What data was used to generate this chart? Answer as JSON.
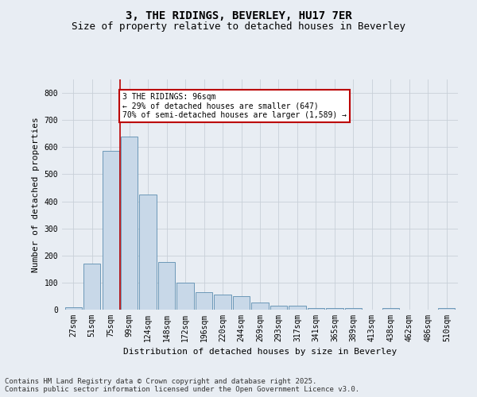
{
  "title": "3, THE RIDINGS, BEVERLEY, HU17 7ER",
  "subtitle": "Size of property relative to detached houses in Beverley",
  "xlabel": "Distribution of detached houses by size in Beverley",
  "ylabel": "Number of detached properties",
  "categories": [
    "27sqm",
    "51sqm",
    "75sqm",
    "99sqm",
    "124sqm",
    "148sqm",
    "172sqm",
    "196sqm",
    "220sqm",
    "244sqm",
    "269sqm",
    "293sqm",
    "317sqm",
    "341sqm",
    "365sqm",
    "389sqm",
    "413sqm",
    "438sqm",
    "462sqm",
    "486sqm",
    "510sqm"
  ],
  "values": [
    10,
    170,
    585,
    640,
    425,
    175,
    100,
    65,
    55,
    50,
    25,
    15,
    15,
    5,
    5,
    5,
    0,
    5,
    0,
    0,
    5
  ],
  "bar_color": "#c8d8e8",
  "bar_edge_color": "#5b8db0",
  "grid_color": "#c8d0d8",
  "bg_color": "#e8edf3",
  "vline_x": 2.5,
  "vline_color": "#bb0000",
  "annotation_text": "3 THE RIDINGS: 96sqm\n← 29% of detached houses are smaller (647)\n70% of semi-detached houses are larger (1,589) →",
  "annotation_box_color": "#bb0000",
  "footnote": "Contains HM Land Registry data © Crown copyright and database right 2025.\nContains public sector information licensed under the Open Government Licence v3.0.",
  "ylim": [
    0,
    850
  ],
  "yticks": [
    0,
    100,
    200,
    300,
    400,
    500,
    600,
    700,
    800
  ],
  "title_fontsize": 10,
  "subtitle_fontsize": 9,
  "axis_label_fontsize": 8,
  "tick_fontsize": 7,
  "footnote_fontsize": 6.5,
  "ann_fontsize": 7
}
